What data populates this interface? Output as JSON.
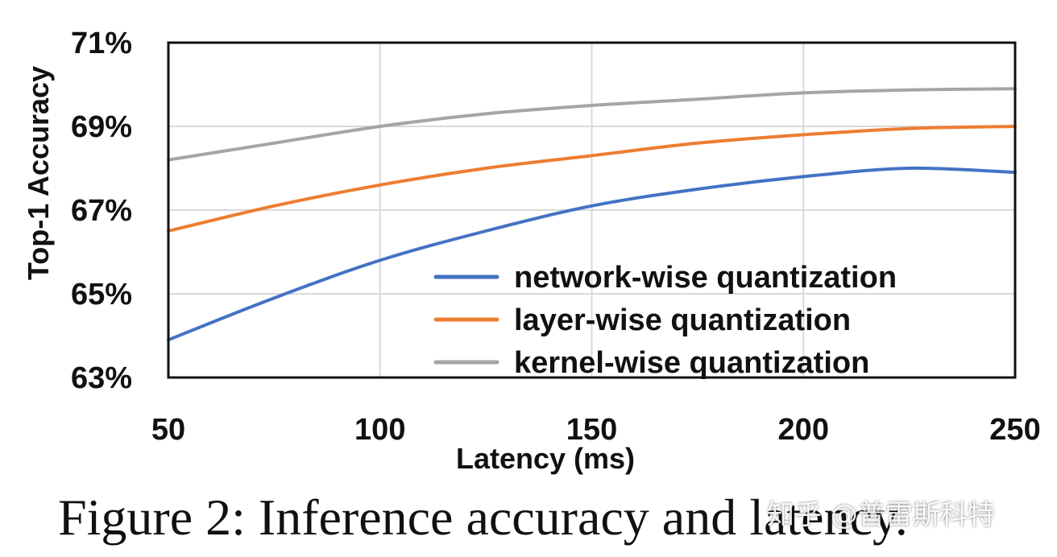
{
  "chart_data": {
    "type": "line",
    "title": "",
    "xlabel": "Latency (ms)",
    "ylabel": "Top-1 Accuracy",
    "xlim": [
      50,
      250
    ],
    "ylim": [
      63,
      71
    ],
    "xticks": [
      50,
      100,
      150,
      200,
      250
    ],
    "yticks": [
      63,
      65,
      67,
      69,
      71
    ],
    "xtick_labels": [
      "50",
      "100",
      "150",
      "200",
      "250"
    ],
    "ytick_labels": [
      "63%",
      "65%",
      "67%",
      "69%",
      "71%"
    ],
    "grid": true,
    "legend_position": "bottom-right",
    "x": [
      50,
      75,
      100,
      125,
      150,
      175,
      200,
      225,
      250
    ],
    "series": [
      {
        "name": "network-wise quantization",
        "color": "#4472C4",
        "values": [
          63.9,
          64.9,
          65.8,
          66.5,
          67.1,
          67.5,
          67.8,
          68.0,
          67.9
        ]
      },
      {
        "name": "layer-wise quantization",
        "color": "#ED7D31",
        "values": [
          66.5,
          67.1,
          67.6,
          68.0,
          68.3,
          68.6,
          68.8,
          68.95,
          69.0
        ]
      },
      {
        "name": "kernel-wise quantization",
        "color": "#A5A5A5",
        "values": [
          68.2,
          68.6,
          69.0,
          69.3,
          69.5,
          69.65,
          69.8,
          69.87,
          69.9
        ]
      }
    ]
  },
  "caption": "Figure 2: Inference accuracy and latency.",
  "watermark": "知乎 @普雷斯科特"
}
